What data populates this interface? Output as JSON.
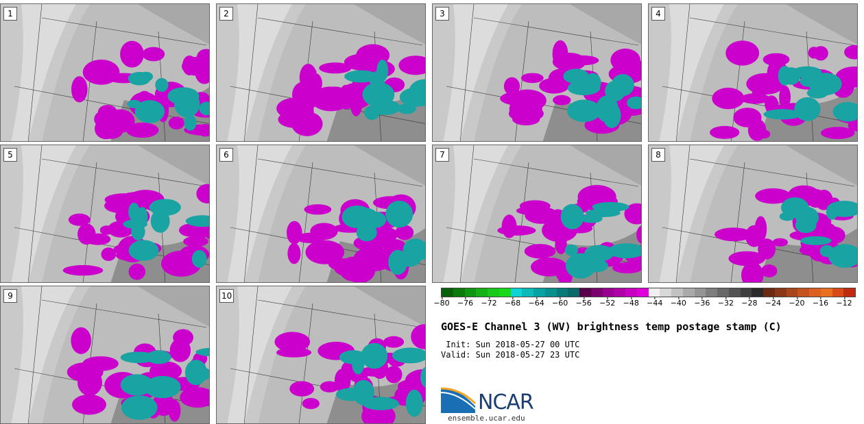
{
  "panels": [
    {
      "label": "1"
    },
    {
      "label": "2"
    },
    {
      "label": "3"
    },
    {
      "label": "4"
    },
    {
      "label": "5"
    },
    {
      "label": "6"
    },
    {
      "label": "7"
    },
    {
      "label": "8"
    },
    {
      "label": "9"
    },
    {
      "label": "10"
    }
  ],
  "colorbar": {
    "ticks": [
      "−80",
      "−76",
      "−72",
      "−68",
      "−64",
      "−60",
      "−56",
      "−52",
      "−48",
      "−44",
      "−40",
      "−36",
      "−32",
      "−28",
      "−24",
      "−20",
      "−16",
      "−12"
    ],
    "colors": [
      "#0a5f0a",
      "#0e7a0e",
      "#119611",
      "#15b015",
      "#1ac81a",
      "#19d719",
      "#0fd2d2",
      "#0cbaba",
      "#0aa3a3",
      "#0a8f8f",
      "#087a7a",
      "#0a6a6a",
      "#5a004a",
      "#7a0070",
      "#990090",
      "#b000a8",
      "#c800c0",
      "#dd00d8",
      "#f0f0f0",
      "#d8d8d8",
      "#c2c2c2",
      "#aaaaaa",
      "#959595",
      "#7e7e7e",
      "#686868",
      "#535353",
      "#3f3f3f",
      "#2a2a2a",
      "#6b2a14",
      "#8a3618",
      "#a8451c",
      "#c4521e",
      "#dc6020",
      "#e8701f",
      "#d84a18",
      "#c02a10"
    ]
  },
  "title": "GOES-E Channel 3 (WV) brightness temp postage stamp (C)",
  "init": " Init: Sun 2018-05-27 00 UTC",
  "valid": "Valid: Sun 2018-05-27 23 UTC",
  "logo_text": "NCAR",
  "website": "ensemble.ucar.edu",
  "colors": {
    "magenta": "#cc00cc",
    "teal": "#1aa3a3",
    "gray_light": "#dcdcdc",
    "gray_dark": "#7a7a7a"
  }
}
